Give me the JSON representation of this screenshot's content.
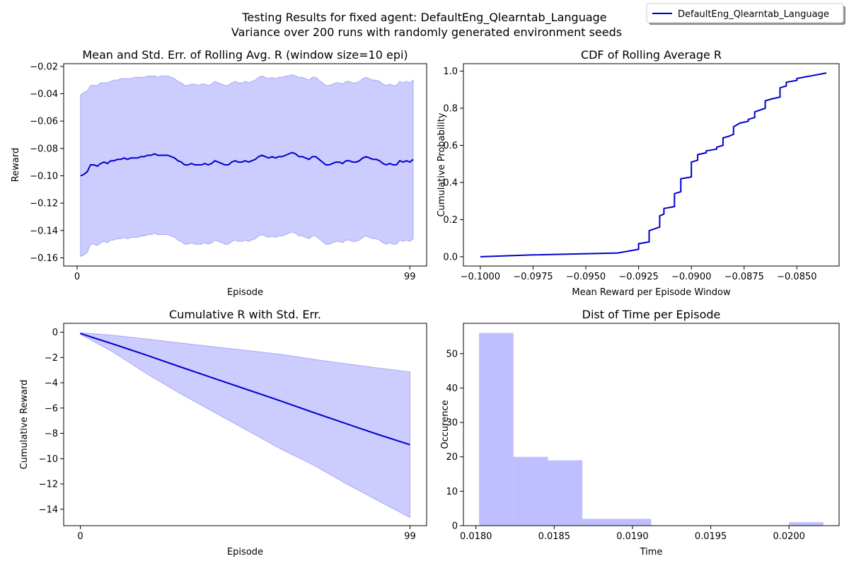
{
  "figure": {
    "title": "Testing Results for fixed agent: DefaultEng_Qlearntab_Language",
    "subtitle": "Variance over 200 runs with randomly generated environment seeds",
    "legend": {
      "label": "DefaultEng_Qlearntab_Language",
      "placement": "top-right",
      "color": "#0000cc"
    }
  },
  "chart_data": [
    {
      "type": "line",
      "title": "Mean and Std. Err. of Rolling Avg. R (window size=10 epi)",
      "xlabel": "Episode",
      "ylabel": "Reward",
      "xlim": [
        -4,
        104
      ],
      "ylim": [
        -0.166,
        -0.018
      ],
      "xticks": [
        0,
        99
      ],
      "xtick_labels": [
        "0",
        "99"
      ],
      "yticks": [
        -0.16,
        -0.14,
        -0.12,
        -0.1,
        -0.08,
        -0.06,
        -0.04,
        -0.02
      ],
      "ytick_labels": [
        "−0.16",
        "−0.14",
        "−0.12",
        "−0.10",
        "−0.08",
        "−0.06",
        "−0.04",
        "−0.02"
      ],
      "x_start": 1,
      "x_step": 1,
      "mean": [
        -0.1,
        -0.099,
        -0.097,
        -0.092,
        -0.092,
        -0.093,
        -0.091,
        -0.09,
        -0.091,
        -0.089,
        -0.089,
        -0.088,
        -0.088,
        -0.087,
        -0.088,
        -0.087,
        -0.087,
        -0.087,
        -0.086,
        -0.086,
        -0.085,
        -0.085,
        -0.084,
        -0.085,
        -0.085,
        -0.085,
        -0.085,
        -0.086,
        -0.087,
        -0.089,
        -0.09,
        -0.092,
        -0.092,
        -0.091,
        -0.092,
        -0.092,
        -0.092,
        -0.091,
        -0.092,
        -0.091,
        -0.089,
        -0.09,
        -0.091,
        -0.092,
        -0.092,
        -0.09,
        -0.089,
        -0.09,
        -0.09,
        -0.089,
        -0.09,
        -0.089,
        -0.088,
        -0.086,
        -0.085,
        -0.086,
        -0.087,
        -0.086,
        -0.087,
        -0.086,
        -0.086,
        -0.085,
        -0.084,
        -0.083,
        -0.084,
        -0.086,
        -0.086,
        -0.087,
        -0.088,
        -0.086,
        -0.086,
        -0.088,
        -0.09,
        -0.092,
        -0.092,
        -0.091,
        -0.09,
        -0.09,
        -0.091,
        -0.089,
        -0.089,
        -0.09,
        -0.09,
        -0.089,
        -0.087,
        -0.086,
        -0.087,
        -0.088,
        -0.088,
        -0.089,
        -0.091,
        -0.092,
        -0.091,
        -0.092,
        -0.092,
        -0.089,
        -0.09,
        -0.089,
        -0.09,
        -0.088
      ],
      "upper": [
        -0.041,
        -0.039,
        -0.038,
        -0.034,
        -0.034,
        -0.034,
        -0.032,
        -0.032,
        -0.032,
        -0.031,
        -0.03,
        -0.03,
        -0.029,
        -0.029,
        -0.029,
        -0.029,
        -0.028,
        -0.028,
        -0.028,
        -0.028,
        -0.027,
        -0.027,
        -0.027,
        -0.028,
        -0.027,
        -0.027,
        -0.027,
        -0.028,
        -0.029,
        -0.031,
        -0.032,
        -0.034,
        -0.034,
        -0.033,
        -0.033,
        -0.034,
        -0.033,
        -0.033,
        -0.034,
        -0.033,
        -0.031,
        -0.032,
        -0.033,
        -0.034,
        -0.034,
        -0.032,
        -0.031,
        -0.032,
        -0.032,
        -0.031,
        -0.032,
        -0.031,
        -0.03,
        -0.028,
        -0.027,
        -0.028,
        -0.029,
        -0.028,
        -0.029,
        -0.028,
        -0.028,
        -0.027,
        -0.027,
        -0.026,
        -0.027,
        -0.028,
        -0.028,
        -0.029,
        -0.03,
        -0.028,
        -0.028,
        -0.03,
        -0.032,
        -0.034,
        -0.034,
        -0.033,
        -0.032,
        -0.032,
        -0.033,
        -0.031,
        -0.031,
        -0.032,
        -0.032,
        -0.031,
        -0.029,
        -0.028,
        -0.029,
        -0.03,
        -0.03,
        -0.031,
        -0.033,
        -0.034,
        -0.033,
        -0.034,
        -0.034,
        -0.031,
        -0.032,
        -0.031,
        -0.032,
        -0.03
      ],
      "lower": [
        -0.159,
        -0.158,
        -0.156,
        -0.15,
        -0.15,
        -0.151,
        -0.149,
        -0.148,
        -0.149,
        -0.147,
        -0.147,
        -0.146,
        -0.146,
        -0.145,
        -0.146,
        -0.145,
        -0.145,
        -0.145,
        -0.144,
        -0.144,
        -0.143,
        -0.143,
        -0.142,
        -0.143,
        -0.143,
        -0.143,
        -0.143,
        -0.144,
        -0.145,
        -0.147,
        -0.148,
        -0.15,
        -0.15,
        -0.149,
        -0.15,
        -0.15,
        -0.15,
        -0.149,
        -0.15,
        -0.149,
        -0.147,
        -0.148,
        -0.149,
        -0.15,
        -0.15,
        -0.148,
        -0.147,
        -0.148,
        -0.148,
        -0.147,
        -0.148,
        -0.147,
        -0.146,
        -0.144,
        -0.143,
        -0.144,
        -0.145,
        -0.144,
        -0.145,
        -0.144,
        -0.144,
        -0.143,
        -0.142,
        -0.141,
        -0.142,
        -0.144,
        -0.144,
        -0.145,
        -0.146,
        -0.144,
        -0.144,
        -0.146,
        -0.148,
        -0.15,
        -0.15,
        -0.149,
        -0.148,
        -0.148,
        -0.149,
        -0.147,
        -0.147,
        -0.148,
        -0.148,
        -0.147,
        -0.145,
        -0.144,
        -0.145,
        -0.146,
        -0.146,
        -0.147,
        -0.149,
        -0.15,
        -0.149,
        -0.15,
        -0.15,
        -0.147,
        -0.148,
        -0.147,
        -0.148,
        -0.146
      ]
    },
    {
      "type": "line",
      "title": "CDF of Rolling Average R",
      "xlabel": "Mean Reward per Episode Window",
      "ylabel": "Cumulative Probability",
      "xlim": [
        -0.1008,
        -0.083
      ],
      "ylim": [
        -0.05,
        1.04
      ],
      "xticks": [
        -0.1,
        -0.0975,
        -0.095,
        -0.0925,
        -0.09,
        -0.0875,
        -0.085
      ],
      "xtick_labels": [
        "−0.1000",
        "−0.0975",
        "−0.0950",
        "−0.0925",
        "−0.0900",
        "−0.0875",
        "−0.0850"
      ],
      "yticks": [
        0,
        0.2,
        0.4,
        0.6,
        0.8,
        1.0
      ],
      "ytick_labels": [
        "0.0",
        "0.2",
        "0.4",
        "0.6",
        "0.8",
        "1.0"
      ],
      "x": [
        -0.1,
        -0.0975,
        -0.0935,
        -0.0925,
        -0.0925,
        -0.092,
        -0.092,
        -0.0915,
        -0.0915,
        -0.0913,
        -0.0913,
        -0.0908,
        -0.0908,
        -0.0905,
        -0.0905,
        -0.09,
        -0.09,
        -0.0897,
        -0.0897,
        -0.0893,
        -0.0893,
        -0.0888,
        -0.0888,
        -0.0885,
        -0.0885,
        -0.0882,
        -0.0882,
        -0.088,
        -0.088,
        -0.0877,
        -0.0877,
        -0.0873,
        -0.0873,
        -0.087,
        -0.087,
        -0.0865,
        -0.0865,
        -0.0862,
        -0.0862,
        -0.0858,
        -0.0858,
        -0.0855,
        -0.0855,
        -0.085,
        -0.085,
        -0.0836
      ],
      "y": [
        0.0,
        0.01,
        0.02,
        0.04,
        0.07,
        0.08,
        0.14,
        0.16,
        0.22,
        0.23,
        0.26,
        0.27,
        0.34,
        0.35,
        0.42,
        0.43,
        0.51,
        0.52,
        0.55,
        0.56,
        0.57,
        0.58,
        0.59,
        0.6,
        0.64,
        0.65,
        0.65,
        0.66,
        0.7,
        0.72,
        0.72,
        0.73,
        0.74,
        0.75,
        0.78,
        0.8,
        0.84,
        0.85,
        0.85,
        0.86,
        0.91,
        0.92,
        0.94,
        0.95,
        0.96,
        0.99
      ]
    },
    {
      "type": "line",
      "title": "Cumulative R with Std. Err.",
      "xlabel": "Episode",
      "ylabel": "Cumulative Reward",
      "xlim": [
        -5,
        104
      ],
      "ylim": [
        -15.3,
        0.7
      ],
      "xticks": [
        0,
        99
      ],
      "xtick_labels": [
        "0",
        "99"
      ],
      "yticks": [
        0,
        -2,
        -4,
        -6,
        -8,
        -10,
        -12,
        -14
      ],
      "ytick_labels": [
        "0",
        "−2",
        "−4",
        "−6",
        "−8",
        "−10",
        "−12",
        "−14"
      ],
      "x": [
        0,
        10,
        20,
        30,
        40,
        50,
        60,
        70,
        80,
        90,
        99
      ],
      "mean": [
        -0.1,
        -0.95,
        -1.83,
        -2.74,
        -3.64,
        -4.53,
        -5.42,
        -6.35,
        -7.25,
        -8.14,
        -8.9
      ],
      "upper": [
        -0.05,
        -0.25,
        -0.55,
        -0.85,
        -1.15,
        -1.45,
        -1.75,
        -2.15,
        -2.5,
        -2.85,
        -3.15
      ],
      "lower": [
        -0.15,
        -1.6,
        -3.3,
        -4.85,
        -6.3,
        -7.75,
        -9.2,
        -10.5,
        -12.0,
        -13.4,
        -14.65
      ]
    },
    {
      "type": "bar",
      "title": "Dist of Time per Episode",
      "xlabel": "Time",
      "ylabel": "Occurence",
      "xlim": [
        0.01792,
        0.02032
      ],
      "ylim": [
        0,
        58.8
      ],
      "xticks": [
        0.018,
        0.0185,
        0.019,
        0.0195,
        0.02
      ],
      "xtick_labels": [
        "0.0180",
        "0.0185",
        "0.0190",
        "0.0195",
        "0.0200"
      ],
      "yticks": [
        0,
        10,
        20,
        30,
        40,
        50
      ],
      "ytick_labels": [
        "0",
        "10",
        "20",
        "30",
        "40",
        "50"
      ],
      "bin_edges": [
        0.01802,
        0.01824,
        0.01846,
        0.01868,
        0.0189,
        0.01912,
        0.01934,
        0.01956,
        0.01978,
        0.02,
        0.02022
      ],
      "counts": [
        56,
        20,
        19,
        2,
        2,
        0,
        0,
        0,
        0,
        1
      ]
    }
  ],
  "colors": {
    "line": "#0000cc",
    "band": "#ccccff",
    "band_edge": "#a8a8f4",
    "hist": "#bfbfff"
  }
}
